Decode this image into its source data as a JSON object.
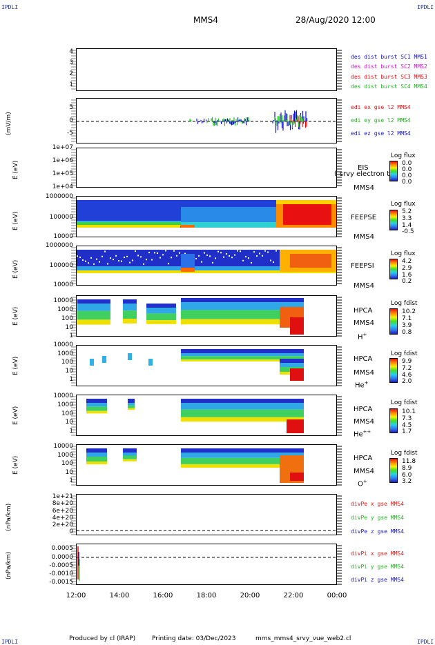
{
  "corners": {
    "tl": "IPDLI",
    "tr": "IPDLI",
    "bl": "IPDLI",
    "br": "IPDLI"
  },
  "header": {
    "mission": "MMS4",
    "datetime": "28/Aug/2020 12:00"
  },
  "x_axis": {
    "ticks": [
      "12:00",
      "14:00",
      "16:00",
      "18:00",
      "20:00",
      "22:00",
      "00:00"
    ]
  },
  "colors": {
    "mms1": "#1010c0",
    "mms2": "#d010d0",
    "mms3": "#e01010",
    "mms4": "#20c020"
  },
  "panels": [
    {
      "id": "des-dist",
      "ylabel": "",
      "yticks": [
        "4",
        "3",
        "2",
        "1"
      ],
      "legend": [
        "des dist burst SC1 MMS1",
        "des dist burst SC2 MMS2",
        "des dist burst SC3 MMS3",
        "des dist burst SC4 MMS4"
      ]
    },
    {
      "id": "edi",
      "ylabel": "(mV/m)",
      "yticks": [
        "5",
        "0",
        "-5"
      ],
      "legend": [
        "edi ex gse l2 MMS4",
        "edi ey gse l2 MMS4",
        "edi ez gse l2 MMS4"
      ]
    },
    {
      "id": "eis",
      "ylabel": "E (eV)",
      "yticks": [
        "1e+07",
        "1e+06",
        "1e+05",
        "1e+04"
      ],
      "label": "EIS",
      "label2": "MMS4",
      "overlap_text": "l_srvy electron to",
      "cbar_title": "Log flux",
      "cbar_vals": [
        "0.0",
        "0.0",
        "0.0",
        "0.0"
      ]
    },
    {
      "id": "feepse",
      "ylabel": "E (eV)",
      "yticks": [
        "1000000",
        "100000",
        "10000"
      ],
      "label": "FEEPSE",
      "label2": "MMS4",
      "cbar_title": "Log flux",
      "cbar_vals": [
        "5.2",
        "3.3",
        "1.4",
        "-0.5"
      ]
    },
    {
      "id": "feepsi",
      "ylabel": "E (eV)",
      "yticks": [
        "1000000",
        "100000",
        "10000"
      ],
      "label": "FEEPSI",
      "label2": "MMS4",
      "cbar_title": "Log flux",
      "cbar_vals": [
        "4.2",
        "2.9",
        "1.6",
        "0.2"
      ]
    },
    {
      "id": "hpca-h",
      "ylabel": "E (eV)",
      "yticks": [
        "10000",
        "1000",
        "100",
        "10",
        "1"
      ],
      "label": "HPCA",
      "label2": "MMS4",
      "species": "H",
      "species_sup": "+",
      "cbar_title": "Log fdist",
      "cbar_vals": [
        "10.2",
        "7.1",
        "3.9",
        "0.8"
      ]
    },
    {
      "id": "hpca-he",
      "ylabel": "E (eV)",
      "yticks": [
        "10000",
        "1000",
        "100",
        "10",
        "1"
      ],
      "label": "HPCA",
      "label2": "MMS4",
      "species": "He",
      "species_sup": "+",
      "cbar_title": "Log fdist",
      "cbar_vals": [
        "9.9",
        "7.2",
        "4.6",
        "2.0"
      ]
    },
    {
      "id": "hpca-he2",
      "ylabel": "E (eV)",
      "yticks": [
        "10000",
        "1000",
        "100",
        "10",
        "1"
      ],
      "label": "HPCA",
      "label2": "MMS4",
      "species": "He",
      "species_sup": "++",
      "cbar_title": "Log fdist",
      "cbar_vals": [
        "10.1",
        "7.3",
        "4.5",
        "1.7"
      ]
    },
    {
      "id": "hpca-o",
      "ylabel": "E (eV)",
      "yticks": [
        "10000",
        "1000",
        "100",
        "10",
        "1"
      ],
      "label": "HPCA",
      "label2": "MMS4",
      "species": "O",
      "species_sup": "+",
      "cbar_title": "Log fdist",
      "cbar_vals": [
        "11.8",
        "8.9",
        "6.0",
        "3.2"
      ]
    },
    {
      "id": "divpe",
      "ylabel": "(nPa/km)",
      "yticks": [
        "1e+21",
        "8e+20",
        "6e+20",
        "4e+20",
        "2e+20",
        "0"
      ],
      "legend": [
        "divPe x gse MMS4",
        "divPe y gse MMS4",
        "divPe z gse MMS4"
      ]
    },
    {
      "id": "divpi",
      "ylabel": "(nPa/km)",
      "yticks": [
        "0.0005",
        "0.0000",
        "-0.0005",
        "-0.0010",
        "-0.0015"
      ],
      "legend": [
        "divPi x gse MMS4",
        "divPi y gse MMS4",
        "divPi z gse MMS4"
      ]
    }
  ],
  "footer": {
    "produced": "Produced by cl (IRAP)",
    "printing": "Printing date: 03/Dec/2023",
    "script": "mms_mms4_srvy_vue_web2.cl"
  }
}
